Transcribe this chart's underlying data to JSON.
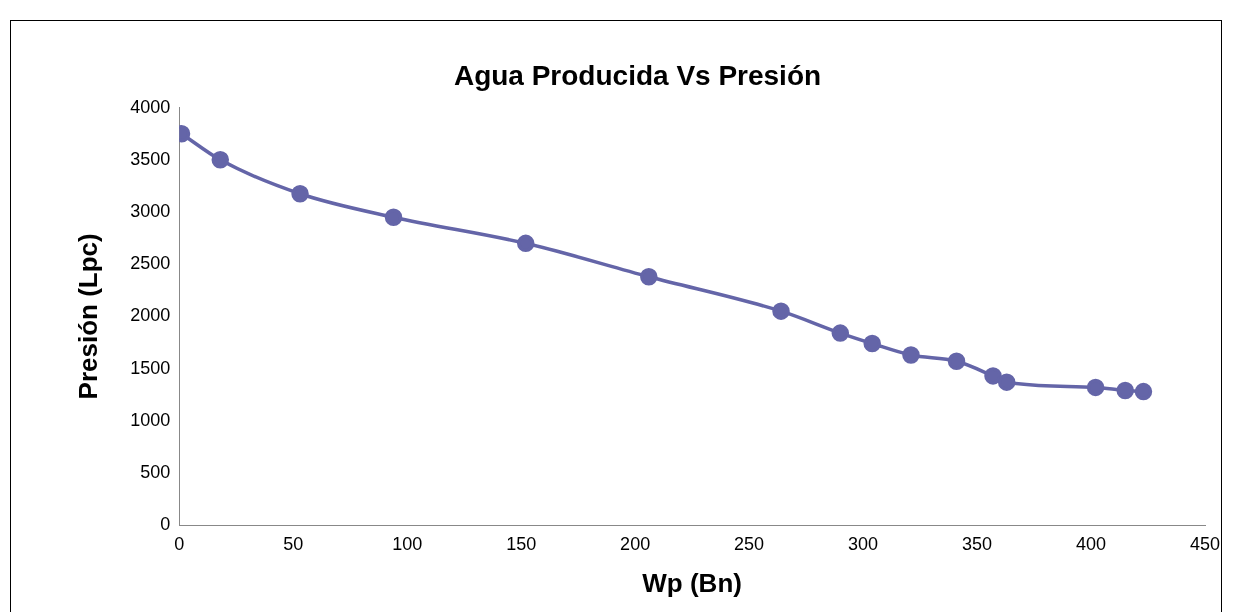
{
  "chart_data": {
    "type": "line",
    "title": "Agua Producida Vs Presión",
    "xlabel": "Wp (Bn)",
    "ylabel": "Presión (Lpc)",
    "x": [
      1,
      18,
      53,
      94,
      152,
      206,
      264,
      290,
      304,
      321,
      341,
      357,
      363,
      402,
      415,
      423
    ],
    "series": [
      {
        "color": "#6465a8",
        "values": [
          3750,
          3500,
          3175,
          2950,
          2700,
          2380,
          2050,
          1840,
          1740,
          1630,
          1570,
          1430,
          1370,
          1320,
          1290,
          1280
        ]
      }
    ],
    "xlim": [
      0,
      450
    ],
    "xticks": [
      0,
      50,
      100,
      150,
      200,
      250,
      300,
      350,
      400,
      450
    ],
    "ylim": [
      0,
      4000
    ],
    "yticks": [
      0,
      500,
      1000,
      1500,
      2000,
      2500,
      3000,
      3500,
      4000
    ],
    "grid": false,
    "legend": false,
    "marker": "circle",
    "line_style": "solid"
  }
}
